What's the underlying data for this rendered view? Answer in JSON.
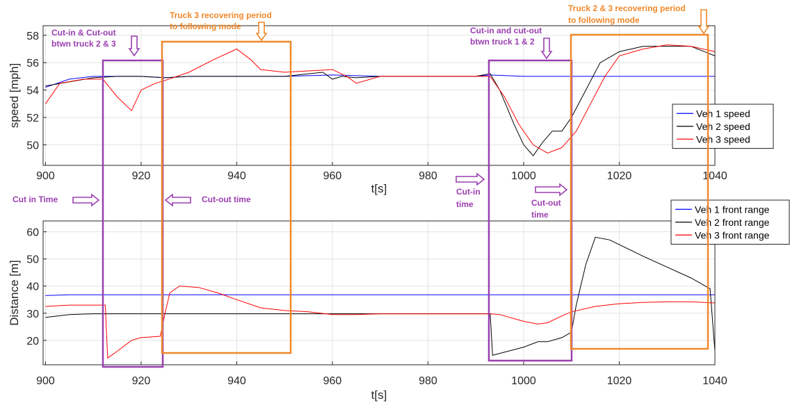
{
  "chart_data": [
    {
      "type": "line",
      "title": "",
      "xlabel": "t[s]",
      "ylabel": "speed [mph]",
      "xlim": [
        899.5,
        1040
      ],
      "ylim": [
        48.5,
        58.7
      ],
      "xticks": [
        900,
        920,
        940,
        960,
        980,
        1000,
        1020,
        1040
      ],
      "yticks": [
        50,
        52,
        54,
        56,
        58
      ],
      "grid": true,
      "legend_position": "right",
      "series": [
        {
          "name": "Veh 1 speed",
          "color": "#0000ff",
          "x": [
            900,
            905,
            910,
            915,
            920,
            925,
            930,
            940,
            950,
            960,
            970,
            980,
            990,
            993,
            1000,
            1010,
            1020,
            1030,
            1040
          ],
          "y": [
            54.2,
            54.8,
            55.0,
            55.0,
            55.0,
            54.9,
            55.0,
            55.0,
            55.0,
            55.1,
            55.0,
            55.0,
            55.0,
            55.1,
            55.0,
            55.0,
            55.0,
            55.0,
            55.0
          ]
        },
        {
          "name": "Veh 2 speed",
          "color": "#000000",
          "x": [
            900,
            905,
            910,
            915,
            920,
            925,
            930,
            940,
            950,
            958,
            960,
            962,
            965,
            970,
            980,
            990,
            993,
            995,
            998,
            1000,
            1002,
            1004,
            1006,
            1008,
            1010,
            1013,
            1016,
            1020,
            1025,
            1030,
            1035,
            1040
          ],
          "y": [
            54.3,
            54.6,
            54.9,
            55.0,
            55.0,
            54.9,
            55.0,
            55.0,
            55.0,
            55.3,
            54.8,
            55.0,
            54.9,
            55.0,
            55.0,
            55.0,
            55.2,
            54.0,
            51.5,
            50.0,
            49.2,
            50.2,
            51.0,
            51.0,
            52.0,
            54.0,
            56.0,
            56.8,
            57.2,
            57.2,
            57.2,
            56.5
          ]
        },
        {
          "name": "Veh 3 speed",
          "color": "#ff0000",
          "x": [
            900,
            903,
            908,
            912,
            915,
            918,
            920,
            923,
            925,
            930,
            935,
            940,
            943,
            945,
            950,
            955,
            960,
            963,
            965,
            970,
            980,
            990,
            993,
            996,
            999,
            1002,
            1005,
            1008,
            1011,
            1014,
            1017,
            1020,
            1025,
            1030,
            1035,
            1040
          ],
          "y": [
            53.0,
            54.5,
            54.8,
            54.8,
            53.5,
            52.5,
            54.0,
            54.5,
            54.7,
            55.3,
            56.2,
            57.0,
            56.2,
            55.5,
            55.3,
            55.4,
            55.5,
            55.0,
            54.5,
            55.0,
            55.0,
            55.0,
            55.0,
            53.5,
            51.5,
            50.0,
            49.4,
            49.8,
            51.0,
            53.0,
            55.0,
            56.5,
            57.0,
            57.3,
            57.2,
            56.8
          ]
        }
      ]
    },
    {
      "type": "line",
      "title": "",
      "xlabel": "t[s]",
      "ylabel": "Distance [m]",
      "xlim": [
        899.5,
        1040
      ],
      "ylim": [
        11,
        64
      ],
      "xticks": [
        900,
        920,
        940,
        960,
        980,
        1000,
        1020,
        1040
      ],
      "yticks": [
        20,
        30,
        40,
        50,
        60
      ],
      "grid": true,
      "legend_position": "top-right",
      "series": [
        {
          "name": "Veh 1 front range",
          "color": "#0000ff",
          "x": [
            900,
            905,
            910,
            920,
            930,
            940,
            950,
            960,
            970,
            980,
            990,
            1000,
            1010,
            1020,
            1030,
            1040
          ],
          "y": [
            36.5,
            36.8,
            36.8,
            36.8,
            36.8,
            36.8,
            36.8,
            36.8,
            36.8,
            36.8,
            36.8,
            36.8,
            36.8,
            36.8,
            36.8,
            36.8
          ]
        },
        {
          "name": "Veh 2 front range",
          "color": "#000000",
          "x": [
            900,
            905,
            910,
            920,
            930,
            940,
            950,
            960,
            970,
            980,
            990,
            993,
            993.5,
            1000,
            1003,
            1005,
            1008,
            1010,
            1011,
            1013,
            1015,
            1018,
            1025,
            1030,
            1035,
            1039,
            1040
          ],
          "y": [
            28.5,
            29.5,
            29.8,
            29.8,
            29.8,
            29.8,
            29.8,
            29.8,
            29.8,
            29.8,
            29.8,
            29.8,
            14.5,
            17.5,
            19.5,
            19.5,
            21.0,
            23.0,
            33.0,
            48.0,
            58.0,
            57.0,
            51.0,
            47.0,
            43.0,
            39.0,
            16.0
          ]
        },
        {
          "name": "Veh 3 front range",
          "color": "#ff0000",
          "x": [
            900,
            905,
            910,
            912.5,
            913,
            915,
            918,
            920,
            924,
            925,
            926,
            928,
            932,
            936,
            940,
            945,
            950,
            955,
            960,
            965,
            970,
            980,
            990,
            993,
            995,
            1000,
            1003,
            1005,
            1008,
            1010,
            1015,
            1020,
            1025,
            1030,
            1035,
            1040
          ],
          "y": [
            32.5,
            33.0,
            33.0,
            33.0,
            13.5,
            16.0,
            20.0,
            21.0,
            21.5,
            30.0,
            37.5,
            40.0,
            39.5,
            37.5,
            35.0,
            32.0,
            31.0,
            30.5,
            29.5,
            29.5,
            29.8,
            29.8,
            29.8,
            29.8,
            29.5,
            27.0,
            26.0,
            26.5,
            29.0,
            30.5,
            32.5,
            33.5,
            34.0,
            34.2,
            34.2,
            33.8
          ]
        }
      ]
    }
  ],
  "annotations": {
    "cutin_cutout_23": [
      "Cut-in & Cut-out",
      "btwn truck 2 & 3"
    ],
    "truck3_recovering": [
      "Truck 3 recovering period",
      "to following mode"
    ],
    "cutin_cutout_12": [
      "Cut-in and cut-out",
      "btwn truck 1 & 2"
    ],
    "truck23_recovering": [
      "Truck 2 & 3 recovering period",
      "to following mode"
    ],
    "cut_in_time": "Cut in Time",
    "cut_out_time": "Cut-out time",
    "cutin_time2": [
      "Cut-in",
      "time"
    ],
    "cutout_time2": [
      "Cut-out",
      "time"
    ]
  },
  "colors": {
    "purple": "#9a3fb0",
    "orange": "#f0882a",
    "axis": "#262626",
    "grid": "#e3e3e3"
  }
}
